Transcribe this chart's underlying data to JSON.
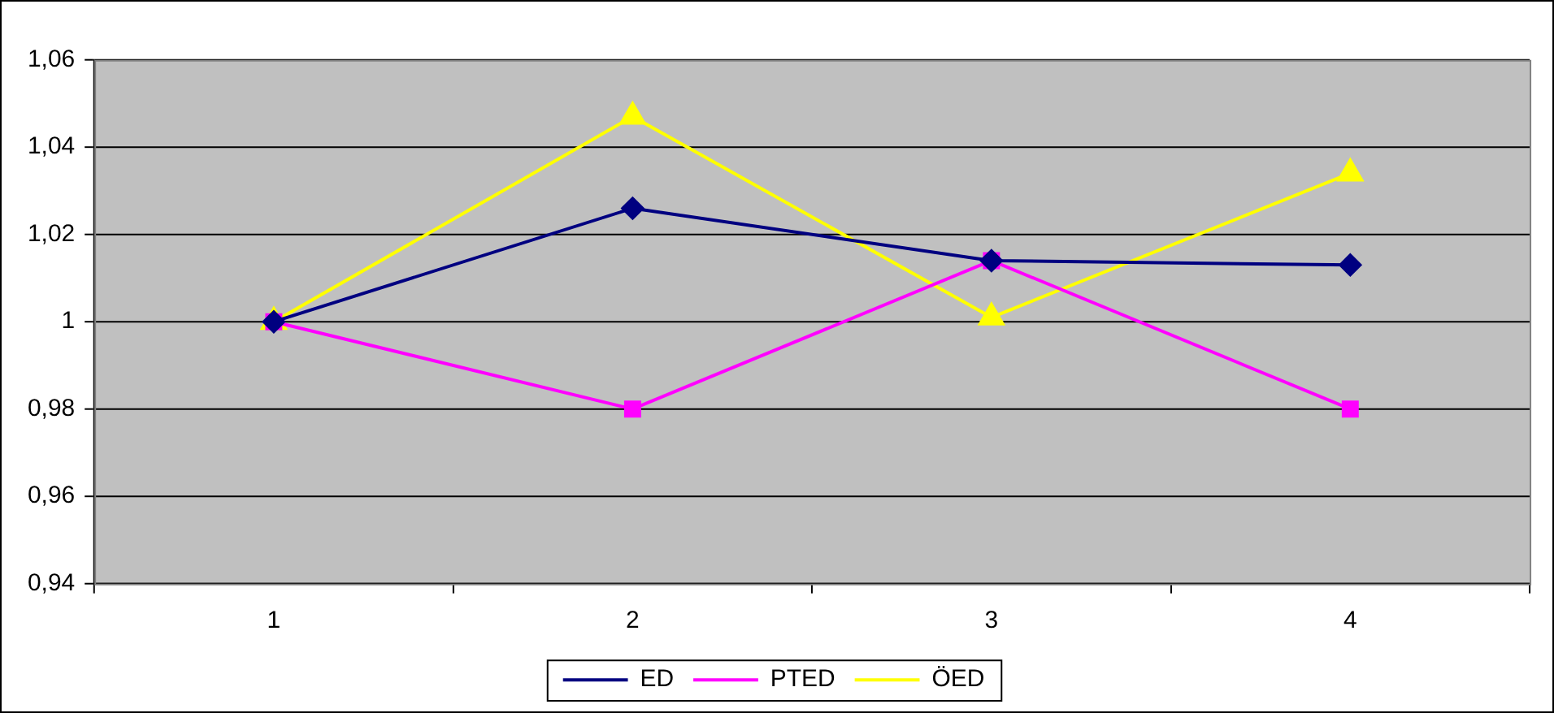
{
  "chart_data": {
    "type": "line",
    "categories": [
      "1",
      "2",
      "3",
      "4"
    ],
    "series": [
      {
        "name": "ED",
        "color": "#000080",
        "marker": "diamond",
        "values": [
          1,
          1.026,
          1.014,
          1.013
        ]
      },
      {
        "name": "PTED",
        "color": "#ff00ff",
        "marker": "square",
        "values": [
          1,
          0.98,
          1.014,
          0.98
        ]
      },
      {
        "name": "ÖED",
        "color": "#ffff00",
        "marker": "triangle",
        "values": [
          1,
          1.047,
          1.001,
          1.034
        ]
      }
    ],
    "ylim": [
      0.94,
      1.06
    ],
    "yticks": [
      {
        "value": 0.94,
        "label": "0,94"
      },
      {
        "value": 0.96,
        "label": "0,96"
      },
      {
        "value": 0.98,
        "label": "0,98"
      },
      {
        "value": 1,
        "label": "1"
      },
      {
        "value": 1.02,
        "label": "1,02"
      },
      {
        "value": 1.04,
        "label": "1,04"
      },
      {
        "value": 1.06,
        "label": "1,06"
      }
    ],
    "grid": "y",
    "legend": "bottom",
    "line_style": "solid"
  }
}
